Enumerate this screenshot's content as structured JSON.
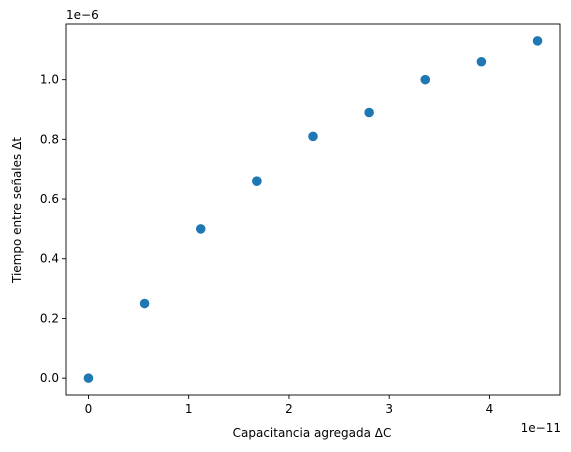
{
  "chart_data": {
    "type": "scatter",
    "xlabel": "Capacitancia agregada ΔC",
    "ylabel": "Tiempo entre señales Δt",
    "x_offset_label": "1e−11",
    "y_offset_label": "1e−6",
    "x_scale": 1e-11,
    "y_scale": 1e-06,
    "x": [
      0,
      0.56,
      1.12,
      1.68,
      2.24,
      2.8,
      3.36,
      3.92,
      4.48
    ],
    "y": [
      0.0,
      0.25,
      0.5,
      0.66,
      0.81,
      0.89,
      1.0,
      1.06,
      1.13
    ],
    "xlim": [
      -0.224,
      4.704
    ],
    "ylim": [
      -0.0565,
      1.1865
    ],
    "x_ticks": [
      0,
      1,
      2,
      3,
      4
    ],
    "x_tick_labels": [
      "0",
      "1",
      "2",
      "3",
      "4"
    ],
    "y_ticks": [
      0.0,
      0.2,
      0.4,
      0.6,
      0.8,
      1.0
    ],
    "y_tick_labels": [
      "0.0",
      "0.2",
      "0.4",
      "0.6",
      "0.8",
      "1.0"
    ],
    "marker_color": "#1f77b4",
    "grid": false
  }
}
